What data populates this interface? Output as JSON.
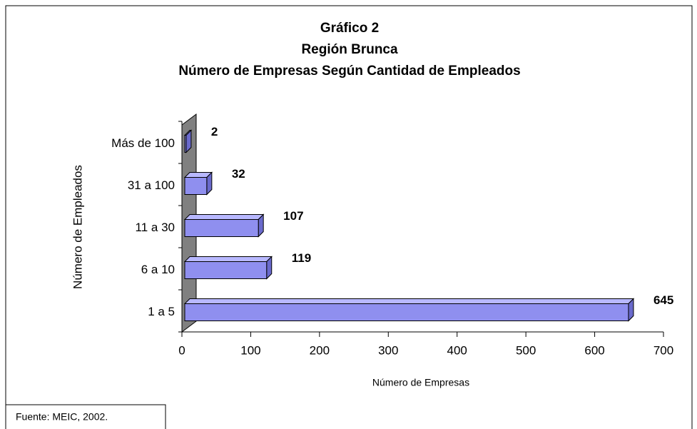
{
  "chart_data": {
    "type": "hbar3d",
    "title": [
      "Gráfico 2",
      "Región Brunca",
      "Número de Empresas Según Cantidad de Empleados"
    ],
    "categories": [
      "1 a 5",
      "6 a 10",
      "11 a 30",
      "31 a 100",
      "Más de 100"
    ],
    "values": [
      645,
      119,
      107,
      32,
      2
    ],
    "color": "#8f8fef",
    "xlim": [
      0,
      700
    ],
    "xticks": [
      0,
      100,
      200,
      300,
      400,
      500,
      600,
      700
    ],
    "xlabel": "Número de Empresas",
    "ylabel": "Número de Empleados",
    "source": "Fuente: MEIC, 2002."
  }
}
